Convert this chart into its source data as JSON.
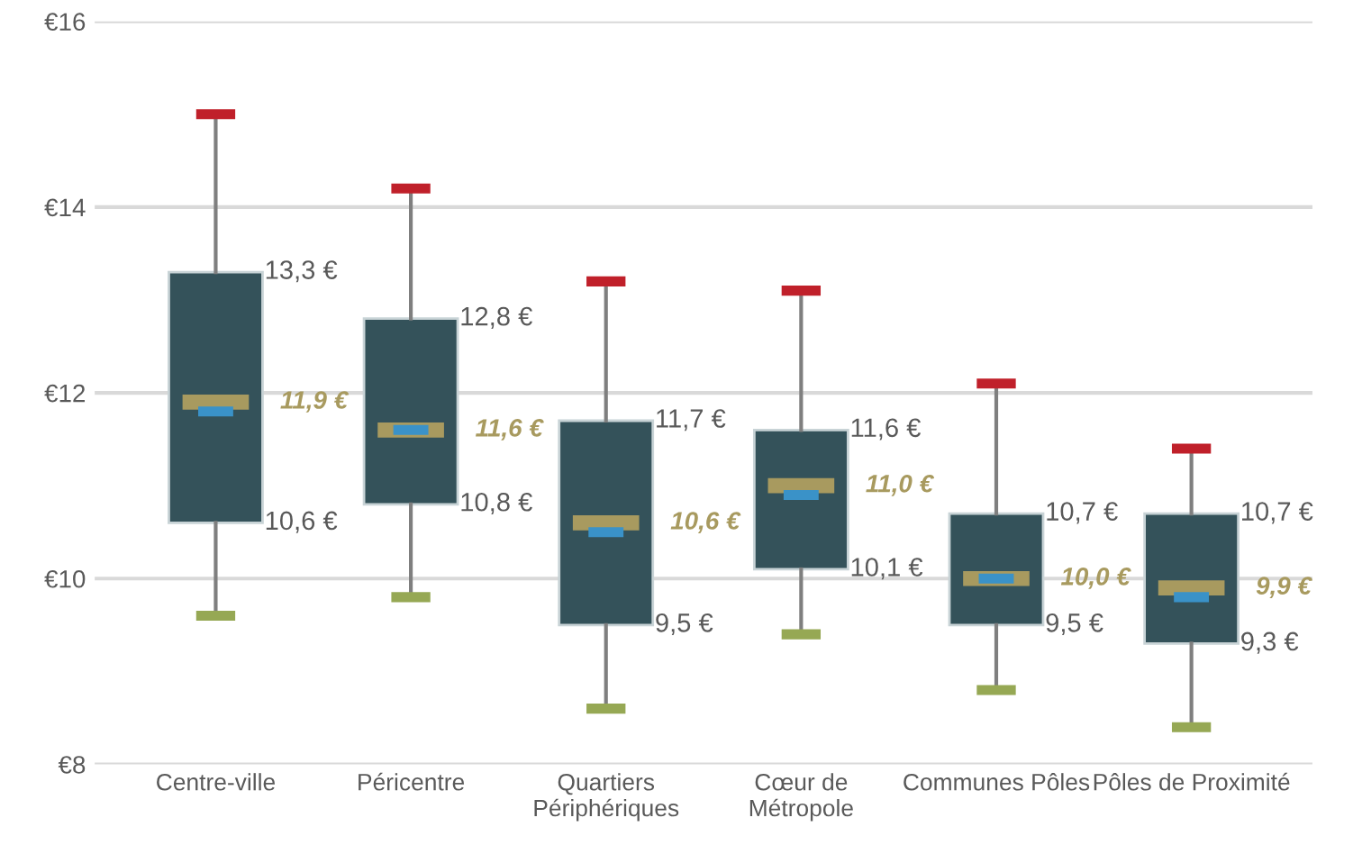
{
  "chart_data": {
    "type": "box",
    "categories": [
      "Centre-ville",
      "Péricentre",
      "Quartiers\nPériphériques",
      "Cœur de\nMétropole",
      "Communes Pôles",
      "Pôles de Proximité"
    ],
    "series": [
      {
        "color": "#34525a",
        "boxes": [
          {
            "low": 9.6,
            "q1": 10.6,
            "median": 11.9,
            "q3": 13.3,
            "high": 15.0,
            "mean": 11.8
          },
          {
            "low": 9.8,
            "q1": 10.8,
            "median": 11.6,
            "q3": 12.8,
            "high": 14.2,
            "mean": 11.6
          },
          {
            "low": 8.6,
            "q1": 9.5,
            "median": 10.6,
            "q3": 11.7,
            "high": 13.2,
            "mean": 10.5
          },
          {
            "low": 9.4,
            "q1": 10.1,
            "median": 11.0,
            "q3": 11.6,
            "high": 13.1,
            "mean": 10.9
          },
          {
            "low": 8.8,
            "q1": 9.5,
            "median": 10.0,
            "q3": 10.7,
            "high": 12.1,
            "mean": 10.0
          },
          {
            "low": 8.4,
            "q1": 9.3,
            "median": 9.9,
            "q3": 10.7,
            "high": 11.4,
            "mean": 9.8
          }
        ]
      }
    ],
    "value_labels": [
      [
        "13,3 €",
        "11,9 €",
        "10,6 €"
      ],
      [
        "12,8 €",
        "11,6 €",
        "10,8 €"
      ],
      [
        "11,7 €",
        "10,6 €",
        "9,5 €"
      ],
      [
        "11,6 €",
        "11,0 €",
        "10,1 €"
      ],
      [
        "10,7 €",
        "10,0 €",
        "9,5 €"
      ],
      [
        "10,7 €",
        "9,9 €",
        "9,3 €"
      ]
    ],
    "ylim": [
      8,
      16
    ],
    "yticks": [
      {
        "value": 8,
        "label": "€8"
      },
      {
        "value": 10,
        "label": "€10"
      },
      {
        "value": 12,
        "label": "€12"
      },
      {
        "value": 14,
        "label": "€14"
      },
      {
        "value": 16,
        "label": "€16"
      }
    ],
    "grid": "y"
  }
}
